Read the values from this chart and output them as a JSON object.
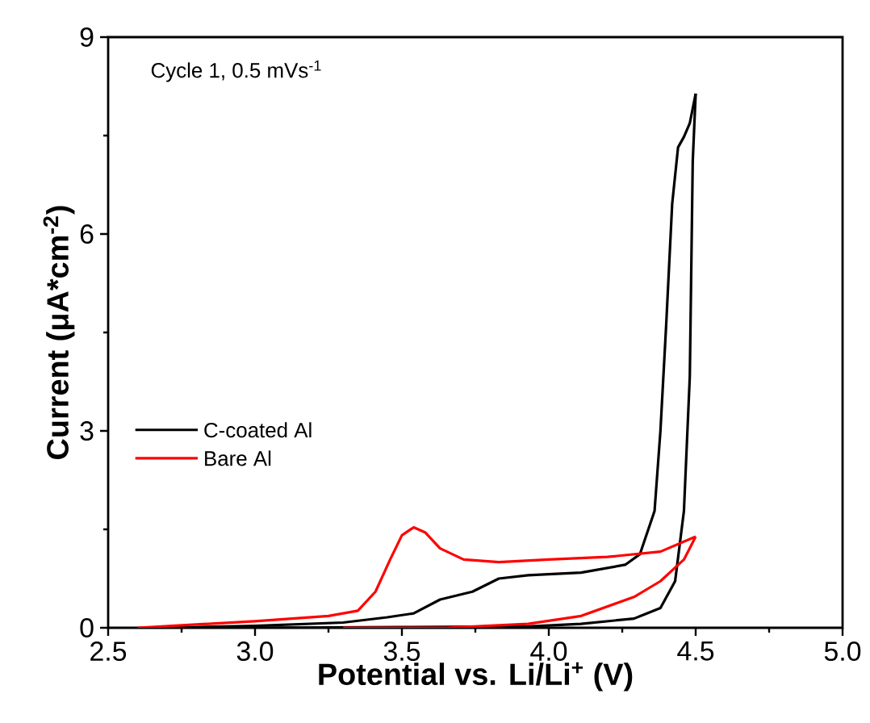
{
  "chart_data": {
    "type": "line",
    "xlabel": "Potential vs. Li/Li$^{+}$ (V)",
    "ylabel": "Current (μA*cm$^{-2}$)",
    "annotations": [
      "Cycle 1, 0.5 mVs$^{-1}$"
    ],
    "xlim": [
      2.5,
      5.0
    ],
    "ylim": [
      0,
      9
    ],
    "xticks": [
      2.5,
      {
        "value": 3.0,
        "label": "3.0"
      },
      3.5,
      {
        "value": 4.0,
        "label": "4.0"
      },
      4.5,
      {
        "value": 5.0,
        "label": "5.0"
      }
    ],
    "yticks": [
      0,
      3,
      6,
      9
    ],
    "grid": false,
    "legend": "left",
    "marker": "none",
    "line_style": "solid",
    "series": [
      {
        "name": "C-coated Al",
        "color": "#000000",
        "x": [
          2.7,
          3.0,
          3.3,
          3.45,
          3.54,
          3.63,
          3.74,
          3.83,
          3.93,
          4.11,
          4.26,
          4.31,
          4.36,
          4.38,
          4.4,
          4.42,
          4.44,
          4.46,
          4.48,
          4.5
        ],
        "values": [
          0,
          0.03,
          0.08,
          0.16,
          0.22,
          0.43,
          0.55,
          0.75,
          0.8,
          0.84,
          0.96,
          1.12,
          1.78,
          3.0,
          4.65,
          6.46,
          7.32,
          7.48,
          7.69,
          8.14
        ]
      },
      {
        "color": "#000000",
        "x": [
          3.0,
          3.5,
          3.93,
          4.11,
          4.29,
          4.38,
          4.43,
          4.46,
          4.48,
          4.49,
          4.5
        ],
        "values": [
          0,
          0.01,
          0.02,
          0.06,
          0.14,
          0.3,
          0.71,
          1.78,
          3.83,
          7.11,
          8.14
        ]
      },
      {
        "name": "Bare Al",
        "color": "#ff0000",
        "x": [
          2.6,
          3.0,
          3.25,
          3.35,
          3.41,
          3.46,
          3.5,
          3.54,
          3.58,
          3.63,
          3.71,
          3.83,
          4.0,
          4.2,
          4.38,
          4.5
        ],
        "values": [
          0,
          0.1,
          0.18,
          0.26,
          0.55,
          1.04,
          1.41,
          1.53,
          1.45,
          1.21,
          1.04,
          1.0,
          1.04,
          1.08,
          1.16,
          1.39
        ]
      },
      {
        "color": "#ff0000",
        "x": [
          3.3,
          3.65,
          3.93,
          4.11,
          4.29,
          4.38,
          4.46,
          4.5
        ],
        "values": [
          0,
          0,
          0.06,
          0.18,
          0.47,
          0.71,
          1.04,
          1.39
        ]
      }
    ]
  }
}
